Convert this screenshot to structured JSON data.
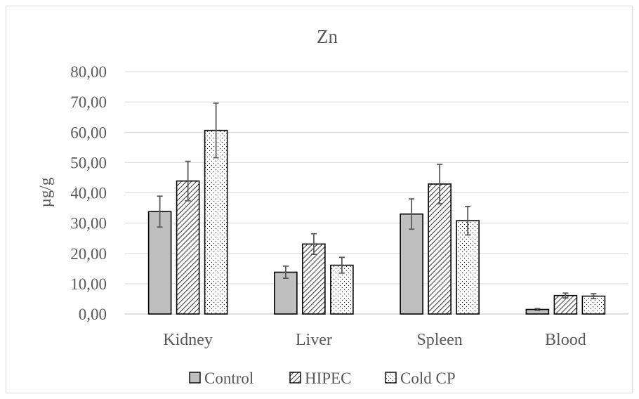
{
  "chart_data": {
    "type": "bar",
    "title": "Zn",
    "xlabel": "",
    "ylabel": "µg/g",
    "ylim": [
      0,
      80
    ],
    "yticks": [
      "0,00",
      "10,00",
      "20,00",
      "30,00",
      "40,00",
      "50,00",
      "60,00",
      "70,00",
      "80,00"
    ],
    "categories": [
      "Kidney",
      "Liver",
      "Spleen",
      "Blood"
    ],
    "grid": true,
    "legend_position": "bottom",
    "series": [
      {
        "name": "Control",
        "pattern": "solid",
        "color": "#bfbfbf",
        "values": [
          33.8,
          13.8,
          33.0,
          1.5
        ],
        "errors": [
          5.1,
          2.0,
          5.0,
          0.3
        ]
      },
      {
        "name": "HIPEC",
        "pattern": "diagonal-hatch",
        "color": "#ffffff",
        "values": [
          43.9,
          23.1,
          42.9,
          6.1
        ],
        "errors": [
          6.5,
          3.4,
          6.5,
          0.8
        ]
      },
      {
        "name": "Cold CP",
        "pattern": "dots",
        "color": "#ffffff",
        "values": [
          60.6,
          16.1,
          30.8,
          5.9
        ],
        "errors": [
          9.0,
          2.6,
          4.7,
          0.8
        ]
      }
    ]
  }
}
